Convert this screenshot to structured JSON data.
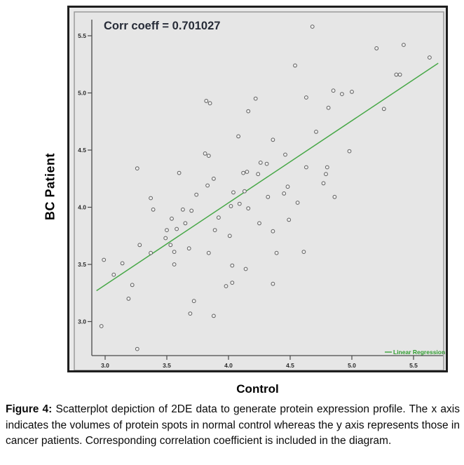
{
  "figure": {
    "corr_label": "Corr coeff = 0.701027",
    "legend_label": "Linear Regression",
    "x_axis_label": "Control",
    "y_axis_label": "BC Patient"
  },
  "caption": {
    "prefix": "Figure 4:",
    "text": " Scatterplot depiction of 2DE data to generate protein expression profile. The x axis indicates the volumes of protein spots in normal control whereas the y axis represents those in cancer patients. Corresponding correlation coefficient is included in the diagram."
  },
  "colors": {
    "figure_bg": "#e9e9e9",
    "panel_bg": "#e6e6e6",
    "panel_border": "#9b9b9b",
    "axis": "#4a4a4a",
    "tick_label": "#2a2a2a",
    "point_stroke": "#5e5e5e",
    "point_fill": "#efefef",
    "regression_line": "#47a847",
    "legend_text": "#2f9e2f",
    "annotation_text": "#272c38"
  },
  "chart_data": {
    "type": "scatter",
    "title": "",
    "xlabel": "Control",
    "ylabel": "BC Patient",
    "annotation": "Corr coeff = 0.701027",
    "legend": [
      {
        "label": "Linear Regression",
        "type": "line",
        "position": "bottom-right"
      }
    ],
    "xlim": [
      2.87,
      5.73
    ],
    "ylim": [
      2.68,
      5.76
    ],
    "x_ticks": [
      3.0,
      3.5,
      4.0,
      4.5,
      5.0,
      5.5
    ],
    "y_ticks": [
      5.5,
      5.0,
      4.5,
      4.0,
      3.5,
      3.0
    ],
    "grid": false,
    "regression_line": {
      "x1": 2.93,
      "y1": 3.27,
      "x2": 5.7,
      "y2": 5.26
    },
    "points": [
      [
        4.68,
        5.58
      ],
      [
        5.42,
        5.42
      ],
      [
        5.2,
        5.39
      ],
      [
        5.63,
        5.31
      ],
      [
        4.54,
        5.24
      ],
      [
        5.36,
        5.16
      ],
      [
        5.39,
        5.16
      ],
      [
        4.85,
        5.02
      ],
      [
        5.0,
        5.01
      ],
      [
        4.92,
        4.99
      ],
      [
        4.63,
        4.96
      ],
      [
        4.22,
        4.95
      ],
      [
        3.82,
        4.93
      ],
      [
        3.85,
        4.91
      ],
      [
        4.81,
        4.87
      ],
      [
        5.26,
        4.86
      ],
      [
        4.16,
        4.84
      ],
      [
        4.71,
        4.66
      ],
      [
        4.08,
        4.62
      ],
      [
        4.36,
        4.59
      ],
      [
        4.98,
        4.49
      ],
      [
        3.81,
        4.47
      ],
      [
        4.46,
        4.46
      ],
      [
        3.84,
        4.45
      ],
      [
        4.26,
        4.39
      ],
      [
        4.31,
        4.38
      ],
      [
        4.63,
        4.35
      ],
      [
        4.8,
        4.35
      ],
      [
        3.26,
        4.34
      ],
      [
        4.15,
        4.31
      ],
      [
        3.6,
        4.3
      ],
      [
        4.12,
        4.3
      ],
      [
        4.24,
        4.29
      ],
      [
        4.79,
        4.29
      ],
      [
        3.88,
        4.25
      ],
      [
        4.77,
        4.21
      ],
      [
        3.83,
        4.19
      ],
      [
        4.48,
        4.18
      ],
      [
        4.13,
        4.14
      ],
      [
        4.04,
        4.13
      ],
      [
        4.45,
        4.12
      ],
      [
        3.74,
        4.11
      ],
      [
        4.32,
        4.09
      ],
      [
        4.86,
        4.09
      ],
      [
        3.37,
        4.08
      ],
      [
        4.56,
        4.04
      ],
      [
        4.09,
        4.03
      ],
      [
        4.02,
        4.01
      ],
      [
        4.16,
        3.99
      ],
      [
        3.39,
        3.98
      ],
      [
        3.63,
        3.98
      ],
      [
        3.7,
        3.97
      ],
      [
        3.92,
        3.91
      ],
      [
        3.54,
        3.9
      ],
      [
        4.49,
        3.89
      ],
      [
        3.65,
        3.86
      ],
      [
        4.25,
        3.86
      ],
      [
        3.58,
        3.81
      ],
      [
        3.5,
        3.8
      ],
      [
        3.89,
        3.8
      ],
      [
        4.36,
        3.79
      ],
      [
        4.01,
        3.75
      ],
      [
        3.49,
        3.73
      ],
      [
        3.28,
        3.67
      ],
      [
        3.53,
        3.67
      ],
      [
        3.68,
        3.64
      ],
      [
        3.56,
        3.61
      ],
      [
        4.61,
        3.61
      ],
      [
        3.37,
        3.6
      ],
      [
        3.84,
        3.6
      ],
      [
        4.39,
        3.6
      ],
      [
        2.99,
        3.54
      ],
      [
        3.14,
        3.51
      ],
      [
        3.56,
        3.5
      ],
      [
        4.03,
        3.49
      ],
      [
        4.14,
        3.46
      ],
      [
        3.07,
        3.41
      ],
      [
        4.03,
        3.34
      ],
      [
        4.36,
        3.33
      ],
      [
        3.22,
        3.32
      ],
      [
        3.98,
        3.31
      ],
      [
        3.19,
        3.2
      ],
      [
        3.72,
        3.18
      ],
      [
        3.69,
        3.07
      ],
      [
        3.88,
        3.05
      ],
      [
        2.97,
        2.96
      ],
      [
        3.26,
        2.76
      ]
    ]
  }
}
